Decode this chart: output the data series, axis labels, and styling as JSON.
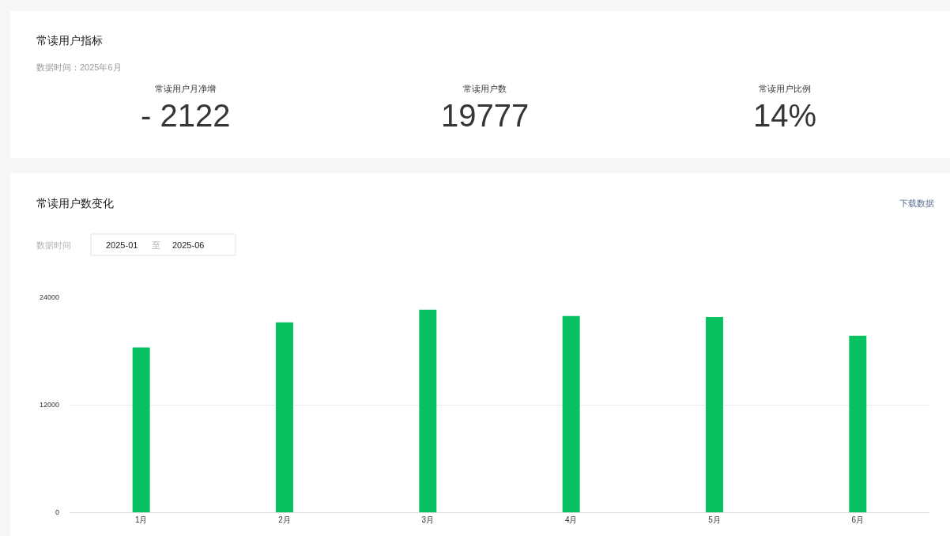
{
  "chart_data": [
    {
      "type": "other",
      "title": "常读用户指标",
      "subtitle": "数据时间：2025年6月",
      "annotations": [
        "常读用户月净增",
        "- 2122",
        "常读用户数",
        "19777",
        "常读用户比例",
        "14%"
      ]
    },
    {
      "type": "bar",
      "title": "常读用户数变化",
      "annotations": [
        "下载数据",
        "数据时间",
        "2025-01",
        "至",
        "2025-06"
      ],
      "categories": [
        "1月",
        "2月",
        "3月",
        "4月",
        "5月",
        "6月"
      ],
      "values": [
        18400,
        21200,
        22600,
        21900,
        21800,
        19700
      ],
      "color": "#07c160",
      "ylim": [
        0,
        24000
      ],
      "yticks": [
        0,
        12000,
        24000
      ],
      "grid": "y"
    }
  ]
}
